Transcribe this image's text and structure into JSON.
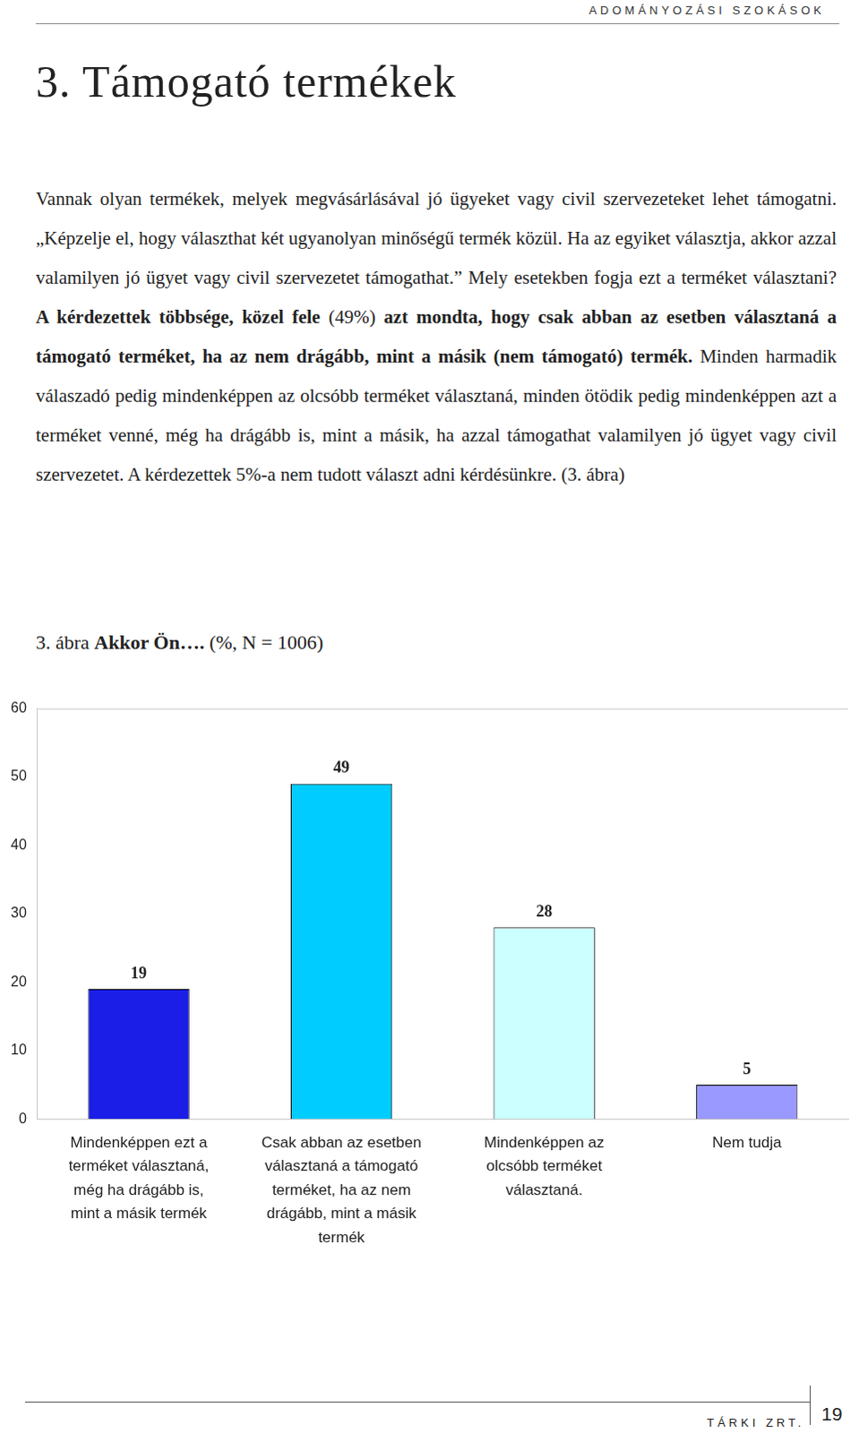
{
  "header": "ADOMÁNYOZÁSI SZOKÁSOK",
  "heading": "3. Támogató termékek",
  "paragraph": [
    {
      "text": "Vannak olyan termékek, melyek megvásárlásával jó ügyeket vagy civil szervezeteket lehet támogatni. „Képzelje el, hogy választhat két ugyanolyan minőségű termék közül. Ha az egyiket választja, akkor azzal valamilyen jó ügyet vagy civil szervezetet támogathat.” Mely esetekben fogja ezt a terméket választani? ",
      "bold": false
    },
    {
      "text": "A kérdezettek többsége, közel fele",
      "bold": true
    },
    {
      "text": " (49%) ",
      "bold": false
    },
    {
      "text": "azt mondta, hogy csak abban az esetben választaná a támogató terméket, ha az nem drágább, mint a másik (nem támogató) termék.",
      "bold": true
    },
    {
      "text": " Minden harmadik válaszadó pedig mindenképpen az olcsóbb terméket választaná, minden ötödik pedig mindenképpen azt a terméket venné, még ha drágább is, mint a másik, ha azzal támogathat valamilyen jó ügyet vagy civil szervezetet. A kérdezettek 5%-a nem tudott választ adni kérdésünkre. (3. ábra)",
      "bold": false
    }
  ],
  "caption": [
    {
      "text": "3. ábra ",
      "bold": false
    },
    {
      "text": "Akkor Ön….",
      "bold": true
    },
    {
      "text": " (%, N = 1006)",
      "bold": false
    }
  ],
  "chart_data": {
    "type": "bar",
    "categories": [
      [
        "Mindenképpen ezt a",
        "terméket választaná,",
        "még ha drágább is,",
        "mint a másik termék"
      ],
      [
        "Csak abban az esetben",
        "választaná a támogató",
        "terméket, ha az nem",
        "drágább, mint a másik",
        "termék"
      ],
      [
        "Mindenképpen az",
        "olcsóbb terméket",
        "választaná."
      ],
      [
        "Nem tudja"
      ]
    ],
    "values": [
      19,
      49,
      28,
      5
    ],
    "colors": [
      "#1a1ee6",
      "#00ccff",
      "#ccffff",
      "#9999ff"
    ],
    "ylim": [
      0,
      60
    ],
    "yticks": [
      0,
      10,
      20,
      30,
      40,
      50,
      60
    ],
    "grid": false,
    "data_labels": true
  },
  "footer": {
    "publisher": "TÁRKI ZRT.",
    "page": "19"
  }
}
